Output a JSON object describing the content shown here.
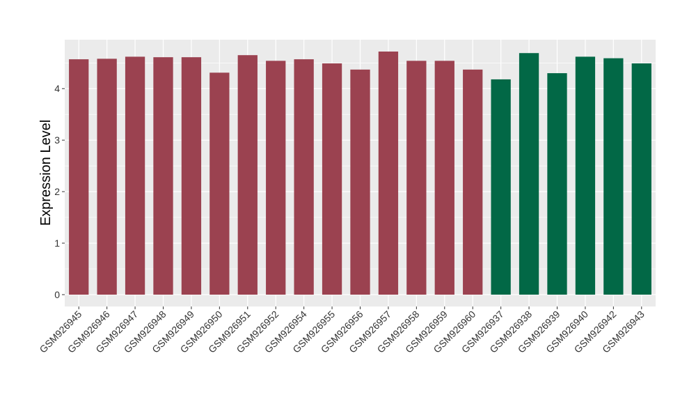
{
  "chart_data": {
    "type": "bar",
    "title": "",
    "xlabel": "",
    "ylabel": "Expression Level",
    "ylim": [
      -0.23,
      4.95
    ],
    "yticks": [
      0,
      1,
      2,
      3,
      4
    ],
    "grid": true,
    "legend": "none",
    "categories": [
      "GSM926945",
      "GSM926946",
      "GSM926947",
      "GSM926948",
      "GSM926949",
      "GSM926950",
      "GSM926951",
      "GSM926952",
      "GSM926954",
      "GSM926955",
      "GSM926956",
      "GSM926957",
      "GSM926958",
      "GSM926959",
      "GSM926960",
      "GSM926937",
      "GSM926938",
      "GSM926939",
      "GSM926940",
      "GSM926942",
      "GSM926943"
    ],
    "values": [
      4.57,
      4.58,
      4.62,
      4.61,
      4.61,
      4.31,
      4.65,
      4.54,
      4.57,
      4.49,
      4.37,
      4.72,
      4.54,
      4.54,
      4.37,
      4.18,
      4.69,
      4.3,
      4.62,
      4.59,
      4.49
    ],
    "groups": [
      0,
      0,
      0,
      0,
      0,
      0,
      0,
      0,
      0,
      0,
      0,
      0,
      0,
      0,
      0,
      1,
      1,
      1,
      1,
      1,
      1
    ],
    "group_colors": [
      "#9b4250",
      "#026846"
    ],
    "panel_background": "#ebebeb"
  }
}
